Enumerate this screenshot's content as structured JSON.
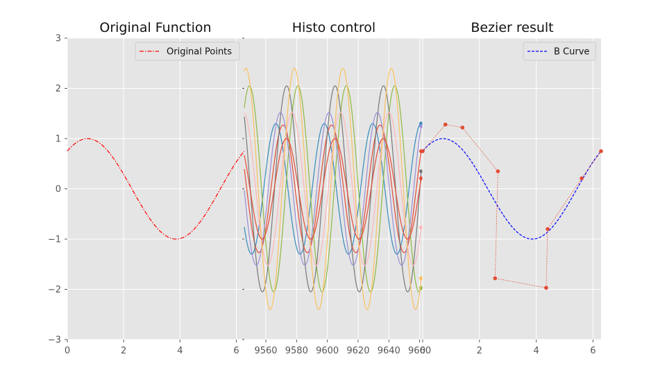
{
  "figure": {
    "background": "#ffffff",
    "panel_bg": "#e5e5e5",
    "grid_color": "#ffffff",
    "tick_color": "#555555"
  },
  "chart_data": [
    {
      "type": "line",
      "title": "Original Function",
      "xlim": [
        0,
        6.283
      ],
      "ylim": [
        -3,
        3
      ],
      "xticks": [
        "0",
        "2",
        "4",
        "6"
      ],
      "yticks": [
        "3",
        "2",
        "1",
        "0",
        "−1",
        "−2",
        "−3"
      ],
      "legend": {
        "placement": "top-right",
        "entries": [
          "Original Points"
        ]
      },
      "series": [
        {
          "name": "Original Points",
          "color": "#ff0000",
          "style": "dash-dot",
          "function": "y = sin(x + 0.85)",
          "x_range": [
            0,
            6.283
          ]
        }
      ]
    },
    {
      "type": "line",
      "title": "Histo control",
      "xlim": [
        9546,
        9662
      ],
      "ylim": [
        -3,
        3
      ],
      "xticks": [
        "9560",
        "9580",
        "9600",
        "9620",
        "9640",
        "9660"
      ],
      "legend": null,
      "series": [
        {
          "amplitude": 1.3,
          "color": "#348abd",
          "end_value": 1.3
        },
        {
          "amplitude": 1.27,
          "color": "#e24a33",
          "end_value": 0.75
        },
        {
          "amplitude": 2.05,
          "color": "#8eba42",
          "end_value": -1.97
        },
        {
          "amplitude": 2.05,
          "color": "#777777",
          "end_value": 0.35
        },
        {
          "amplitude": 1.52,
          "color": "#988ed5",
          "end_value": 1.25
        },
        {
          "amplitude": 1.52,
          "color": "#ffb5b8",
          "end_value": -0.77
        },
        {
          "amplitude": 2.4,
          "color": "#fbc15e",
          "end_value": -1.78
        },
        {
          "amplitude": 1.0,
          "color": "#e24a33",
          "end_value": 0.21
        }
      ]
    },
    {
      "type": "line",
      "title": "Bezier result",
      "xlim": [
        0,
        6.283
      ],
      "ylim": [
        -3,
        3
      ],
      "xticks": [
        "0",
        "2",
        "4",
        "6"
      ],
      "legend": {
        "placement": "top-right",
        "entries": [
          "B Curve"
        ]
      },
      "series": [
        {
          "name": "B Curve",
          "color": "#0000ff",
          "style": "dashed",
          "function": "y = sin(x + 0.85)",
          "x_range": [
            0,
            6.283
          ]
        },
        {
          "name": "",
          "color": "#e24a33",
          "style": "control-polygon",
          "x": [
            0,
            0.8,
            1.4,
            2.65,
            2.55,
            4.35,
            4.4,
            5.6,
            6.283
          ],
          "y": [
            0.75,
            1.28,
            1.22,
            0.35,
            -1.78,
            -1.97,
            -0.8,
            0.21,
            0.75
          ]
        }
      ]
    }
  ]
}
